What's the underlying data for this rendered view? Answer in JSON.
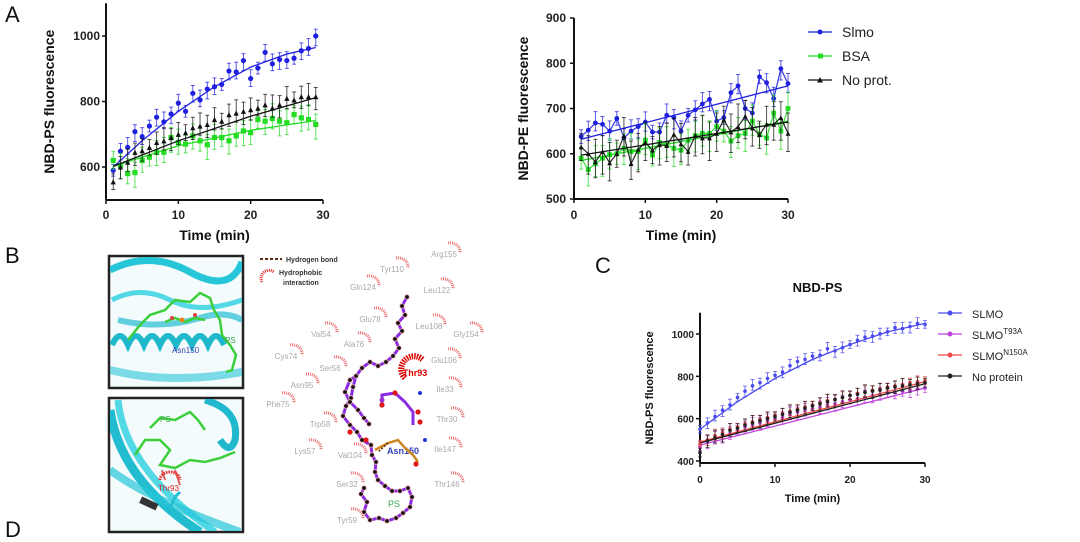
{
  "panels": {
    "a": "A",
    "b": "B",
    "c": "C",
    "d": "D"
  },
  "chart_data": [
    {
      "type": "scatter",
      "panel": "A",
      "title": "",
      "xlabel": "Time (min)",
      "ylabel": "NBD-PS fluorescence",
      "xlim": [
        0,
        30
      ],
      "ylim": [
        500,
        1100
      ],
      "xticks": [
        0,
        10,
        20,
        30
      ],
      "yticks": [
        600,
        800,
        1000
      ],
      "grid": false,
      "series": [
        {
          "color": "#1f1fe0",
          "marker": "circle",
          "error": 30,
          "x": [
            1,
            2,
            3,
            4,
            5,
            6,
            7,
            8,
            9,
            10,
            11,
            12,
            13,
            14,
            15,
            16,
            17,
            18,
            19,
            20,
            21,
            22,
            23,
            24,
            25,
            26,
            27,
            28,
            29
          ],
          "y": [
            590,
            648,
            660,
            708,
            693,
            725,
            752,
            738,
            762,
            795,
            770,
            825,
            805,
            838,
            845,
            852,
            893,
            890,
            925,
            870,
            902,
            950,
            915,
            928,
            925,
            932,
            955,
            962,
            1000
          ],
          "fit": [
            [
              1,
              600
            ],
            [
              5,
              680
            ],
            [
              10,
              770
            ],
            [
              15,
              845
            ],
            [
              20,
              905
            ],
            [
              25,
              945
            ],
            [
              29,
              965
            ]
          ]
        },
        {
          "color": "#22dd22",
          "marker": "square",
          "error": 45,
          "x": [
            1,
            2,
            3,
            4,
            5,
            6,
            7,
            8,
            9,
            10,
            11,
            12,
            13,
            14,
            15,
            16,
            17,
            18,
            19,
            20,
            21,
            22,
            23,
            24,
            25,
            26,
            27,
            28,
            29
          ],
          "y": [
            620,
            605,
            580,
            583,
            620,
            630,
            645,
            645,
            690,
            675,
            670,
            695,
            680,
            668,
            690,
            690,
            680,
            695,
            710,
            705,
            745,
            740,
            748,
            740,
            735,
            760,
            750,
            745,
            730
          ],
          "fit": [
            [
              1,
              602
            ],
            [
              10,
              665
            ],
            [
              20,
              712
            ],
            [
              29,
              742
            ]
          ]
        },
        {
          "color": "#111111",
          "marker": "triangle",
          "error": 40,
          "x": [
            1,
            2,
            3,
            4,
            5,
            6,
            7,
            8,
            9,
            10,
            11,
            12,
            13,
            14,
            15,
            16,
            17,
            18,
            19,
            20,
            21,
            22,
            23,
            24,
            25,
            26,
            27,
            28,
            29
          ],
          "y": [
            555,
            600,
            615,
            645,
            650,
            660,
            675,
            680,
            690,
            700,
            705,
            720,
            725,
            730,
            745,
            740,
            760,
            765,
            770,
            775,
            780,
            790,
            780,
            790,
            810,
            805,
            815,
            815,
            815
          ],
          "fit": [
            [
              1,
              602
            ],
            [
              10,
              680
            ],
            [
              20,
              755
            ],
            [
              29,
              812
            ]
          ]
        }
      ]
    },
    {
      "type": "line",
      "panel": "A",
      "title": "",
      "xlabel": "Time (min)",
      "ylabel": "NBD-PE fluorescence",
      "xlim": [
        0,
        30
      ],
      "ylim": [
        500,
        900
      ],
      "xticks": [
        0,
        10,
        20,
        30
      ],
      "yticks": [
        500,
        600,
        700,
        800,
        900
      ],
      "grid": false,
      "legend_position": "right",
      "series": [
        {
          "name": "Slmo",
          "color": "#1f1fe0",
          "marker": "circle",
          "error": 25,
          "x": [
            1,
            2,
            3,
            4,
            5,
            6,
            7,
            8,
            9,
            10,
            11,
            12,
            13,
            14,
            15,
            16,
            17,
            18,
            19,
            20,
            21,
            22,
            23,
            24,
            25,
            26,
            27,
            28,
            29,
            30
          ],
          "y": [
            638,
            652,
            668,
            665,
            650,
            678,
            635,
            650,
            660,
            670,
            648,
            648,
            685,
            680,
            650,
            685,
            697,
            710,
            720,
            672,
            680,
            735,
            750,
            700,
            690,
            770,
            757,
            722,
            788,
            755
          ],
          "fit": [
            [
              1,
              632
            ],
            [
              30,
              750
            ]
          ]
        },
        {
          "name": "BSA",
          "color": "#22dd22",
          "marker": "square",
          "error": 40,
          "x": [
            1,
            2,
            3,
            4,
            5,
            6,
            7,
            8,
            9,
            10,
            11,
            12,
            13,
            14,
            15,
            16,
            17,
            18,
            19,
            20,
            21,
            22,
            23,
            24,
            25,
            26,
            27,
            28,
            29,
            30
          ],
          "y": [
            590,
            565,
            578,
            590,
            598,
            600,
            612,
            605,
            605,
            630,
            597,
            625,
            620,
            612,
            608,
            630,
            640,
            645,
            645,
            660,
            650,
            628,
            640,
            645,
            672,
            643,
            635,
            690,
            650,
            700
          ],
          "fit": [
            [
              1,
              585
            ],
            [
              30,
              672
            ]
          ]
        },
        {
          "name": "No prot.",
          "color": "#111111",
          "marker": "triangle",
          "error": 50,
          "x": [
            1,
            2,
            3,
            4,
            5,
            6,
            7,
            8,
            9,
            10,
            11,
            12,
            13,
            14,
            15,
            16,
            17,
            18,
            19,
            20,
            21,
            22,
            23,
            24,
            25,
            26,
            27,
            28,
            29,
            30
          ],
          "y": [
            615,
            600,
            582,
            605,
            580,
            600,
            640,
            578,
            610,
            625,
            608,
            620,
            618,
            643,
            622,
            605,
            640,
            635,
            635,
            645,
            675,
            648,
            660,
            683,
            657,
            642,
            665,
            665,
            680,
            645
          ],
          "fit": [
            [
              1,
              597
            ],
            [
              30,
              670
            ]
          ]
        }
      ]
    },
    {
      "type": "scatter",
      "panel": "C",
      "title": "NBD-PS",
      "xlabel": "Time (min)",
      "ylabel": "NBD-PS fluorescence",
      "xlim": [
        0,
        30
      ],
      "ylim": [
        400,
        1100
      ],
      "xticks": [
        0,
        10,
        20,
        30
      ],
      "yticks": [
        400,
        600,
        800,
        1000
      ],
      "grid": false,
      "legend_position": "right",
      "series": [
        {
          "name": "SLMO",
          "sup": "",
          "color": "#4a4af0",
          "marker": "circle",
          "error": 30,
          "x": [
            0,
            1,
            2,
            3,
            4,
            5,
            6,
            7,
            8,
            9,
            10,
            11,
            12,
            13,
            14,
            15,
            16,
            17,
            18,
            19,
            20,
            21,
            22,
            23,
            24,
            25,
            26,
            27,
            28,
            29,
            30
          ],
          "y": [
            550,
            580,
            610,
            640,
            665,
            700,
            730,
            755,
            770,
            790,
            805,
            820,
            850,
            870,
            880,
            895,
            900,
            930,
            920,
            935,
            950,
            970,
            985,
            990,
            1000,
            1010,
            1030,
            1025,
            1035,
            1050,
            1045
          ],
          "fit": [
            [
              0,
              550
            ],
            [
              5,
              680
            ],
            [
              10,
              790
            ],
            [
              15,
              880
            ],
            [
              20,
              950
            ],
            [
              25,
              1010
            ],
            [
              30,
              1050
            ]
          ]
        },
        {
          "name": "SLMO",
          "sup": "T93A",
          "color": "#c040e0",
          "marker": "circle",
          "error": 35,
          "x": [
            0,
            1,
            2,
            3,
            4,
            5,
            6,
            7,
            8,
            9,
            10,
            11,
            12,
            13,
            14,
            15,
            16,
            17,
            18,
            19,
            20,
            21,
            22,
            23,
            24,
            25,
            26,
            27,
            28,
            29,
            30
          ],
          "y": [
            470,
            490,
            505,
            520,
            530,
            545,
            560,
            570,
            580,
            590,
            600,
            605,
            620,
            630,
            640,
            645,
            655,
            665,
            670,
            680,
            690,
            695,
            700,
            710,
            715,
            720,
            725,
            730,
            735,
            740,
            745
          ],
          "fit": [
            [
              0,
              475
            ],
            [
              30,
              745
            ]
          ]
        },
        {
          "name": "SLMO",
          "sup": "N150A",
          "color": "#f04848",
          "marker": "circle",
          "error": 30,
          "x": [
            0,
            1,
            2,
            3,
            4,
            5,
            6,
            7,
            8,
            9,
            10,
            11,
            12,
            13,
            14,
            15,
            16,
            17,
            18,
            19,
            20,
            21,
            22,
            23,
            24,
            25,
            26,
            27,
            28,
            29,
            30
          ],
          "y": [
            480,
            500,
            520,
            535,
            550,
            560,
            575,
            585,
            595,
            605,
            615,
            625,
            635,
            645,
            655,
            665,
            675,
            685,
            690,
            700,
            710,
            720,
            725,
            735,
            740,
            750,
            755,
            760,
            770,
            775,
            780
          ],
          "fit": [
            [
              0,
              490
            ],
            [
              30,
              775
            ]
          ]
        },
        {
          "name": "No protein",
          "sup": "",
          "color": "#222222",
          "marker": "circle",
          "error": 35,
          "x": [
            0,
            1,
            2,
            3,
            4,
            5,
            6,
            7,
            8,
            9,
            10,
            11,
            12,
            13,
            14,
            15,
            16,
            17,
            18,
            19,
            20,
            21,
            22,
            23,
            24,
            25,
            26,
            27,
            28,
            29,
            30
          ],
          "y": [
            440,
            495,
            510,
            525,
            545,
            555,
            570,
            580,
            590,
            600,
            610,
            620,
            630,
            640,
            650,
            660,
            670,
            680,
            690,
            700,
            710,
            715,
            725,
            730,
            735,
            745,
            750,
            755,
            760,
            765,
            770
          ],
          "fit": [
            [
              0,
              485
            ],
            [
              30,
              765
            ]
          ]
        }
      ]
    }
  ],
  "structure_b": {
    "top_labels": {
      "residue": "Asn150",
      "ligand": "PS"
    },
    "bottom_labels": {
      "residue": "Thr93",
      "ligand": "PS"
    }
  },
  "interaction_d": {
    "legend": {
      "hbond": "Hydrogen bond",
      "hydrophobic_1": "Hydrophobic",
      "hydrophobic_2": "interaction"
    },
    "residues": [
      "Arg155",
      "Tyr110",
      "Gln124",
      "Leu122",
      "Glu78",
      "Leu108",
      "Gly154",
      "Val54",
      "Ala76",
      "Cys74",
      "Glu106",
      "Ser56",
      "Asn95",
      "Ile33",
      "Phe75",
      "Thr30",
      "Trp58",
      "Lys57",
      "Val104",
      "Ile147",
      "Ser32",
      "Thr146",
      "Tyr59"
    ],
    "key_residues": {
      "thr": "Thr93",
      "asn": "Asn150"
    },
    "ligand": "PS",
    "colors": {
      "chain": "#8a2be2",
      "hydrophobic": "#e03030",
      "asn150": "#3344bb",
      "thr93": "#dd0000",
      "ps": "#33aa55"
    }
  }
}
